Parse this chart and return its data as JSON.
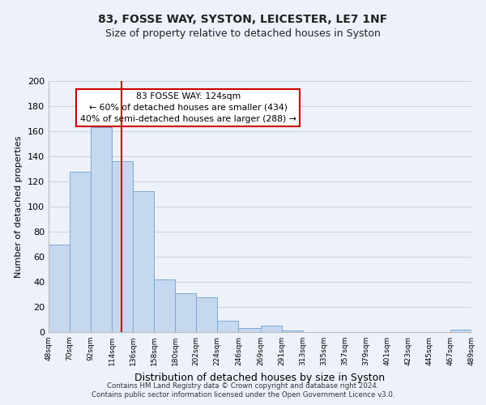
{
  "title": "83, FOSSE WAY, SYSTON, LEICESTER, LE7 1NF",
  "subtitle": "Size of property relative to detached houses in Syston",
  "xlabel": "Distribution of detached houses by size in Syston",
  "ylabel": "Number of detached properties",
  "bar_color": "#c5d8f0",
  "bar_edge_color": "#7aaad0",
  "grid_color": "#c8d4e8",
  "vline_x": 124,
  "vline_color": "#cc0000",
  "annotation_title": "83 FOSSE WAY: 124sqm",
  "annotation_line1": "← 60% of detached houses are smaller (434)",
  "annotation_line2": "40% of semi-detached houses are larger (288) →",
  "annotation_box_color": "#ffffff",
  "annotation_box_edge": "#cc0000",
  "bins": [
    48,
    70,
    92,
    114,
    136,
    158,
    180,
    202,
    224,
    246,
    269,
    291,
    313,
    335,
    357,
    379,
    401,
    423,
    445,
    467,
    489
  ],
  "values": [
    70,
    128,
    163,
    136,
    112,
    42,
    31,
    28,
    9,
    3,
    5,
    1,
    0,
    0,
    0,
    0,
    0,
    0,
    0,
    2
  ],
  "tick_labels": [
    "48sqm",
    "70sqm",
    "92sqm",
    "114sqm",
    "136sqm",
    "158sqm",
    "180sqm",
    "202sqm",
    "224sqm",
    "246sqm",
    "269sqm",
    "291sqm",
    "313sqm",
    "335sqm",
    "357sqm",
    "379sqm",
    "401sqm",
    "423sqm",
    "445sqm",
    "467sqm",
    "489sqm"
  ],
  "ylim": [
    0,
    200
  ],
  "yticks": [
    0,
    20,
    40,
    60,
    80,
    100,
    120,
    140,
    160,
    180,
    200
  ],
  "footer1": "Contains HM Land Registry data © Crown copyright and database right 2024.",
  "footer2": "Contains public sector information licensed under the Open Government Licence v3.0.",
  "background_color": "#edf1f9",
  "title_fontsize": 10,
  "subtitle_fontsize": 9,
  "ylabel_fontsize": 8,
  "xlabel_fontsize": 9
}
